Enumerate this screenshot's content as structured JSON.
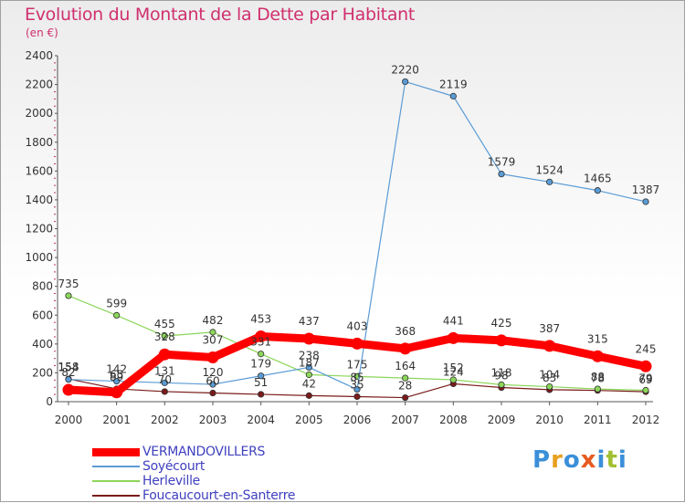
{
  "title": "Evolution du Montant de la Dette par Habitant",
  "subtitle": "(en €)",
  "logo": "Proxiti",
  "chart_data": {
    "type": "line",
    "title": "Evolution du Montant de la Dette par Habitant",
    "subtitle": "(en €)",
    "xlabel": "",
    "ylabel": "",
    "x": [
      2000,
      2001,
      2002,
      2003,
      2004,
      2005,
      2006,
      2007,
      2008,
      2009,
      2010,
      2011,
      2012
    ],
    "ylim": [
      0,
      2400
    ],
    "yticks": [
      0,
      200,
      400,
      600,
      800,
      1000,
      1200,
      1400,
      1600,
      1800,
      2000,
      2200,
      2400
    ],
    "grid": false,
    "legend": "bottom-left",
    "series": [
      {
        "name": "VERMANDOVILLERS",
        "color": "#ff0000",
        "values": [
          82,
          65,
          328,
          307,
          453,
          437,
          403,
          368,
          441,
          425,
          387,
          315,
          245
        ],
        "labels": [
          "82",
          "65",
          "328",
          "307",
          "453",
          "437",
          "403",
          "368",
          "441",
          "425",
          "387",
          "315",
          "245"
        ]
      },
      {
        "name": "Soyécourt",
        "color": "#5a9bd5",
        "values": [
          154,
          142,
          131,
          120,
          179,
          238,
          85,
          2220,
          2119,
          1579,
          1524,
          1465,
          1387
        ],
        "labels": [
          "154",
          "142",
          "131",
          "120",
          "179",
          "238",
          "85",
          "2220",
          "2119",
          "1579",
          "1524",
          "1465",
          "1387"
        ]
      },
      {
        "name": "Herleville",
        "color": "#8cd65a",
        "values": [
          735,
          599,
          455,
          482,
          331,
          187,
          175,
          164,
          152,
          118,
          104,
          88,
          79
        ],
        "labels": [
          "735",
          "599",
          "455",
          "482",
          "331",
          "187",
          "175",
          "164",
          "152",
          "118",
          "104",
          "88",
          "79"
        ]
      },
      {
        "name": "Foucaucourt-en-Santerre",
        "color": "#7a1a1a",
        "values": [
          158,
          89,
          70,
          60,
          51,
          42,
          35,
          28,
          124,
          98,
          83,
          78,
          69
        ],
        "labels": [
          "158",
          "89",
          "70",
          "60",
          "51",
          "42",
          "35",
          "28",
          "124",
          "98",
          "83",
          "78",
          "69"
        ]
      }
    ]
  }
}
